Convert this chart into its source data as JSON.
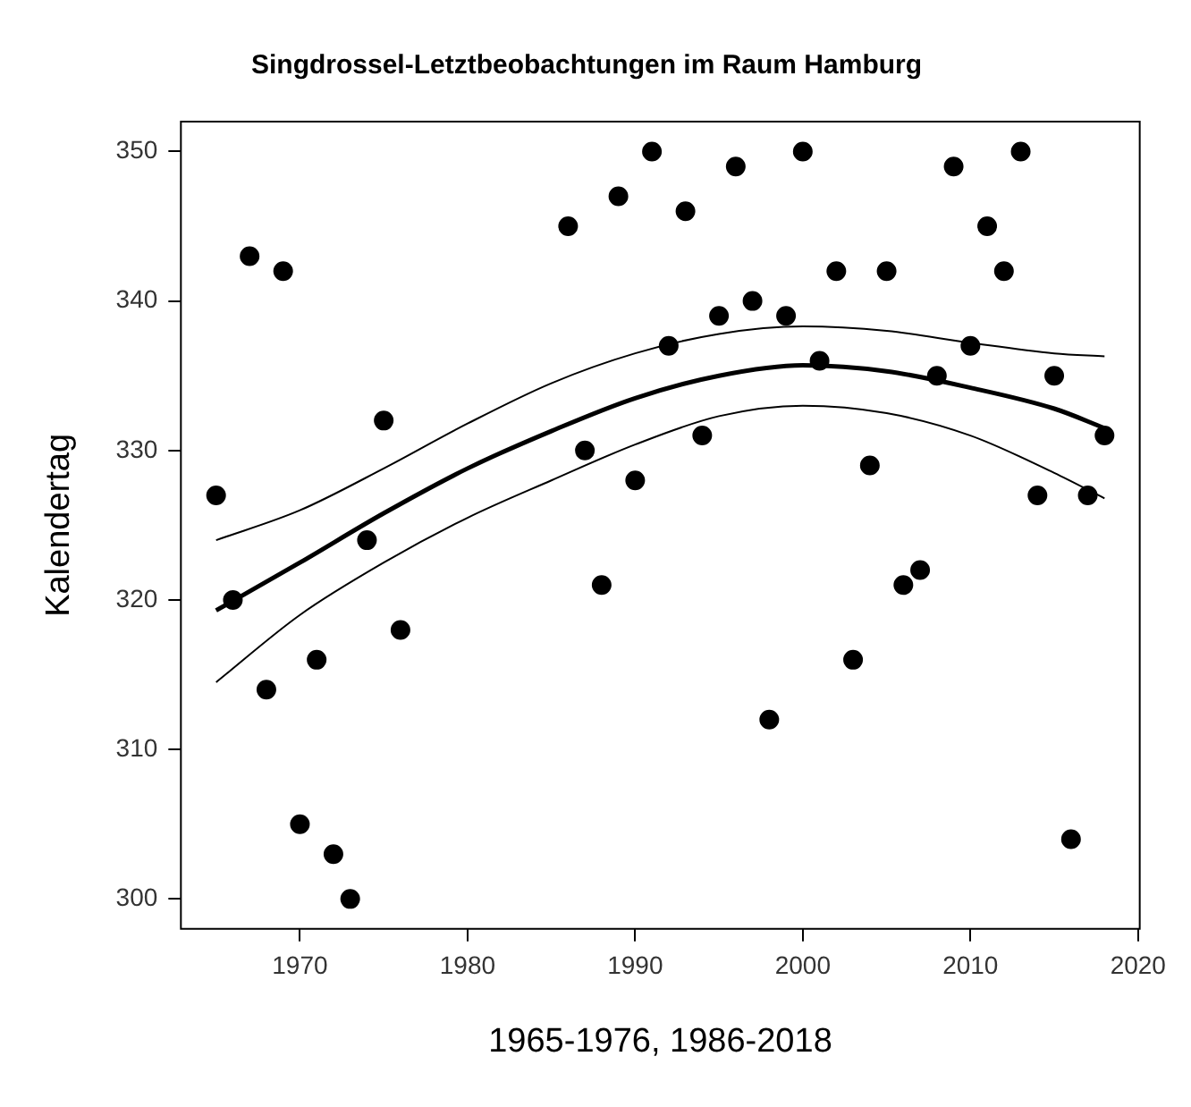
{
  "chart_data": {
    "type": "scatter",
    "title": "Singdrossel-Letztbeobachtungen im Raum Hamburg",
    "xlabel": "1965-1976, 1986-2018",
    "ylabel": "Kalendertag",
    "xlim": [
      1962.9,
      2020.1
    ],
    "xticks": [
      1970,
      1980,
      1990,
      2000,
      2010,
      2020
    ],
    "ylim": [
      298,
      352
    ],
    "yticks": [
      300,
      310,
      320,
      330,
      340,
      350
    ],
    "grid": false,
    "legend": false,
    "marker": "circle",
    "series": [
      {
        "type": "scatter",
        "color": "#000000",
        "x": [
          1965,
          1966,
          1967,
          1968,
          1969,
          1970,
          1971,
          1972,
          1973,
          1974,
          1975,
          1976,
          1986,
          1987,
          1988,
          1989,
          1990,
          1991,
          1992,
          1993,
          1994,
          1995,
          1996,
          1997,
          1998,
          1999,
          2000,
          2001,
          2002,
          2003,
          2004,
          2005,
          2006,
          2007,
          2008,
          2009,
          2010,
          2011,
          2012,
          2013,
          2014,
          2015,
          2016,
          2017,
          2018
        ],
        "values": [
          327,
          320,
          343,
          314,
          342,
          305,
          316,
          303,
          300,
          324,
          332,
          318,
          345,
          330,
          321,
          347,
          328,
          350,
          337,
          346,
          331,
          339,
          349,
          340,
          312,
          339,
          350,
          336,
          342,
          316,
          329,
          342,
          321,
          322,
          335,
          349,
          337,
          345,
          342,
          350,
          327,
          335,
          304,
          327,
          331
        ]
      },
      {
        "type": "line",
        "color": "#000000",
        "marker": "none",
        "x": [
          1965,
          1970,
          1975,
          1980,
          1985,
          1990,
          1995,
          2000,
          2005,
          2010,
          2015,
          2018
        ],
        "values": [
          319.3,
          322.5,
          325.8,
          328.8,
          331.3,
          333.5,
          335,
          335.7,
          335.3,
          334.2,
          332.8,
          331.5
        ]
      },
      {
        "type": "line",
        "color": "#000000",
        "marker": "none",
        "x": [
          1965,
          1970,
          1975,
          1980,
          1985,
          1990,
          1995,
          2000,
          2005,
          2010,
          2015,
          2018
        ],
        "values": [
          324,
          326,
          328.8,
          331.8,
          334.5,
          336.5,
          337.8,
          338.3,
          338,
          337.2,
          336.5,
          336.3
        ]
      },
      {
        "type": "line",
        "color": "#000000",
        "marker": "none",
        "x": [
          1965,
          1970,
          1975,
          1980,
          1985,
          1990,
          1995,
          2000,
          2005,
          2010,
          2015,
          2018
        ],
        "values": [
          314.5,
          319,
          322.5,
          325.5,
          328,
          330.4,
          332.3,
          333,
          332.5,
          331,
          328.5,
          326.8
        ]
      }
    ]
  }
}
